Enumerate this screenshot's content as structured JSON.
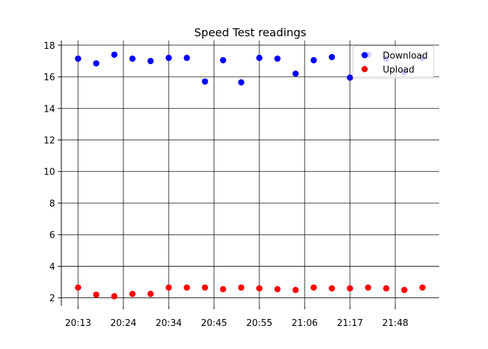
{
  "chart_data": {
    "type": "scatter",
    "title": "Speed Test readings",
    "xlabel": "",
    "ylabel": "",
    "x_ticks": [
      "20:13",
      "20:24",
      "20:34",
      "20:45",
      "20:55",
      "21:06",
      "21:17",
      "21:48"
    ],
    "ylim": [
      1.5,
      18.3
    ],
    "y_ticks": [
      2,
      4,
      6,
      8,
      10,
      12,
      14,
      16,
      18
    ],
    "grid": true,
    "legend_position": "top-right",
    "series": [
      {
        "name": "Download",
        "color": "#0000ff",
        "values": [
          17.15,
          16.85,
          17.4,
          17.15,
          17.0,
          17.2,
          17.2,
          15.7,
          17.05,
          15.65,
          17.2,
          17.15,
          16.2,
          17.05,
          17.25,
          15.95,
          17.4,
          17.15,
          16.3,
          17.2
        ]
      },
      {
        "name": "Upload",
        "color": "#ff0000",
        "values": [
          2.65,
          2.2,
          2.1,
          2.25,
          2.25,
          2.65,
          2.65,
          2.65,
          2.55,
          2.65,
          2.6,
          2.55,
          2.5,
          2.65,
          2.6,
          2.6,
          2.65,
          2.6,
          2.5,
          2.65
        ]
      }
    ]
  }
}
